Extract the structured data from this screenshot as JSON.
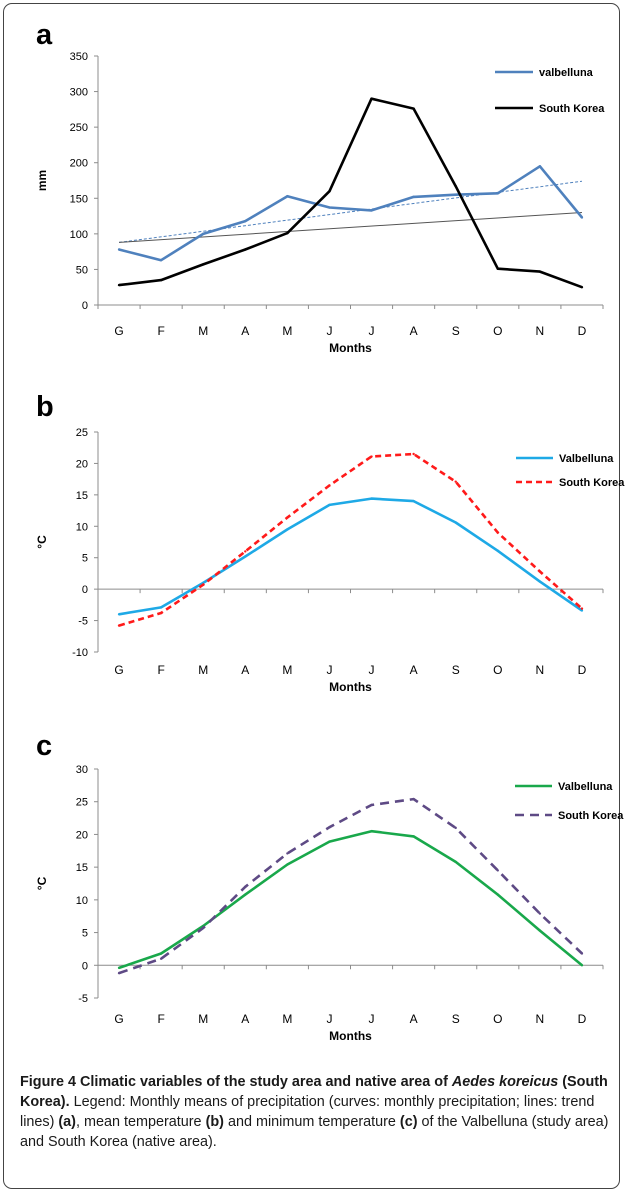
{
  "chart_data": [
    {
      "type": "line",
      "panel_label": "a",
      "categories": [
        "G",
        "F",
        "M",
        "A",
        "M",
        "J",
        "J",
        "A",
        "S",
        "O",
        "N",
        "D"
      ],
      "xlabel": "Months",
      "ylabel": "mm",
      "ylim": [
        0,
        350
      ],
      "yticks": [
        0,
        50,
        100,
        150,
        200,
        250,
        300,
        350
      ],
      "legend_position": "top-right",
      "grid": false,
      "series": [
        {
          "name": "valbelluna",
          "color": "#4f81bd",
          "values": [
            78,
            63,
            100,
            118,
            153,
            137,
            133,
            152,
            155,
            157,
            195,
            123
          ]
        },
        {
          "name": "South Korea",
          "color": "#000000",
          "values": [
            28,
            35,
            57,
            78,
            101,
            160,
            290,
            276,
            167,
            51,
            47,
            25
          ]
        }
      ],
      "trendlines": [
        {
          "color": "#4f81bd",
          "dashed": true,
          "values": [
            88,
            174
          ]
        },
        {
          "color": "#555555",
          "dashed": false,
          "values": [
            88,
            130
          ]
        }
      ]
    },
    {
      "type": "line",
      "panel_label": "b",
      "categories": [
        "G",
        "F",
        "M",
        "A",
        "M",
        "J",
        "J",
        "A",
        "S",
        "O",
        "N",
        "D"
      ],
      "xlabel": "Months",
      "ylabel": "°C",
      "ylim": [
        -10,
        25
      ],
      "yticks": [
        -10,
        -5,
        0,
        5,
        10,
        15,
        20,
        25
      ],
      "legend_position": "top-right",
      "grid": false,
      "series": [
        {
          "name": "Valbelluna",
          "color": "#1ea9e6",
          "dashed": false,
          "values": [
            -4,
            -2.9,
            1,
            5.2,
            9.5,
            13.4,
            14.4,
            14,
            10.6,
            6.1,
            1.2,
            -3.4
          ]
        },
        {
          "name": "South Korea",
          "color": "#ff1a1a",
          "dashed": true,
          "values": [
            -5.8,
            -3.8,
            0.7,
            6,
            11.4,
            16.5,
            21.1,
            21.5,
            17.1,
            9,
            2.8,
            -3.1
          ]
        }
      ]
    },
    {
      "type": "line",
      "panel_label": "c",
      "categories": [
        "G",
        "F",
        "M",
        "A",
        "M",
        "J",
        "J",
        "A",
        "S",
        "O",
        "N",
        "D"
      ],
      "xlabel": "Months",
      "ylabel": "°C",
      "ylim": [
        -5,
        30
      ],
      "yticks": [
        -5,
        0,
        5,
        10,
        15,
        20,
        25,
        30
      ],
      "legend_position": "top-right",
      "grid": false,
      "series": [
        {
          "name": "Valbelluna",
          "color": "#19a84b",
          "dashed": false,
          "values": [
            -0.4,
            1.8,
            6,
            10.8,
            15.4,
            18.9,
            20.5,
            19.7,
            15.8,
            10.8,
            5.3,
            0
          ]
        },
        {
          "name": "South Korea",
          "color": "#5e4a85",
          "dashed": true,
          "values": [
            -1.2,
            1,
            5.7,
            12,
            17.1,
            21.1,
            24.5,
            25.4,
            21,
            14.5,
            7.9,
            1.8
          ]
        }
      ]
    }
  ],
  "caption": {
    "bold_1": "Figure 4 Climatic variables of the study area and native area of ",
    "bold_italic": "Aedes koreicus",
    "bold_2": " (South Korea).",
    "text_1": " Legend: Monthly means of precipitation (curves: monthly precipitation; lines: trend lines) ",
    "ref_a": "(a)",
    "text_2": ", mean temperature ",
    "ref_b": "(b)",
    "text_3": " and minimum temperature ",
    "ref_c": "(c)",
    "text_4": " of the Valbelluna (study area) and South Korea (native area)."
  }
}
